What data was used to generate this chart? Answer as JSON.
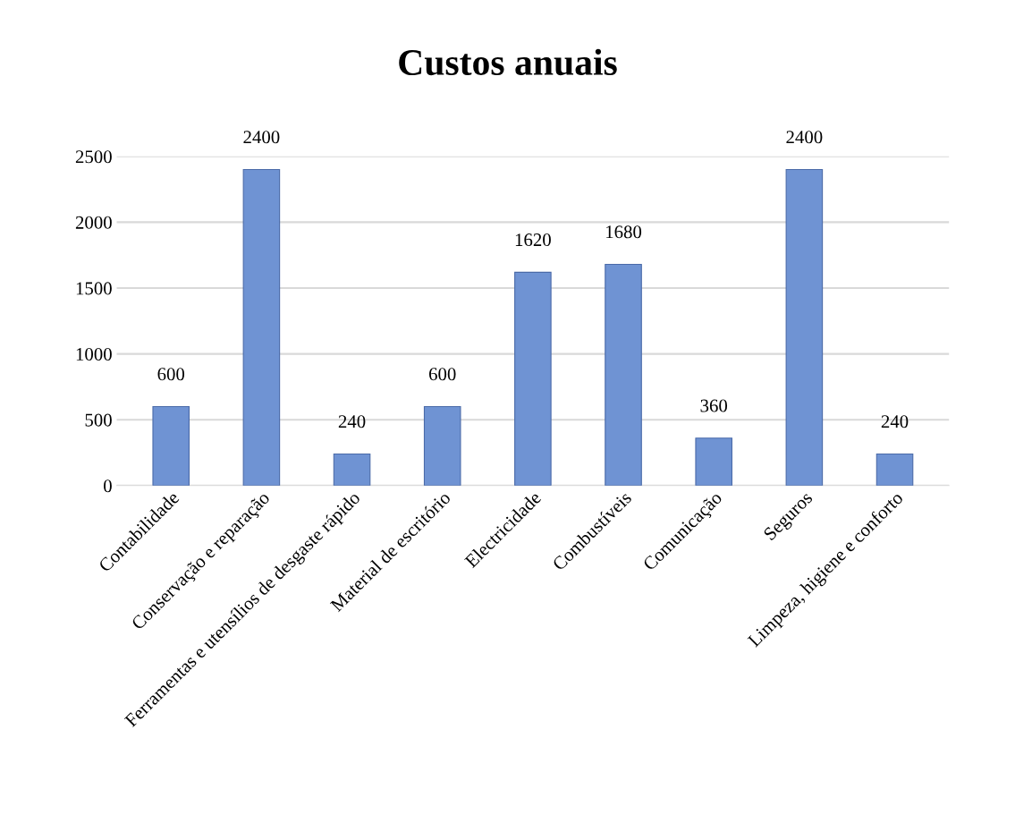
{
  "chart_data": {
    "type": "bar",
    "title": "Custos anuais",
    "categories": [
      "Contabilidade",
      "Conservação e reparação",
      "Ferramentas e utensílios de desgaste rápido",
      "Material de escritório",
      "Electricidade",
      "Combustíveis",
      "Comunicação",
      "Seguros",
      "Limpeza, higiene e conforto"
    ],
    "values": [
      600,
      2400,
      240,
      600,
      1620,
      1680,
      360,
      2400,
      240
    ],
    "color": "#6f93d3",
    "ylim": [
      0,
      2500
    ],
    "yticks": [
      0,
      500,
      1000,
      1500,
      2000,
      2500
    ],
    "grid": "y",
    "data_labels": true
  }
}
